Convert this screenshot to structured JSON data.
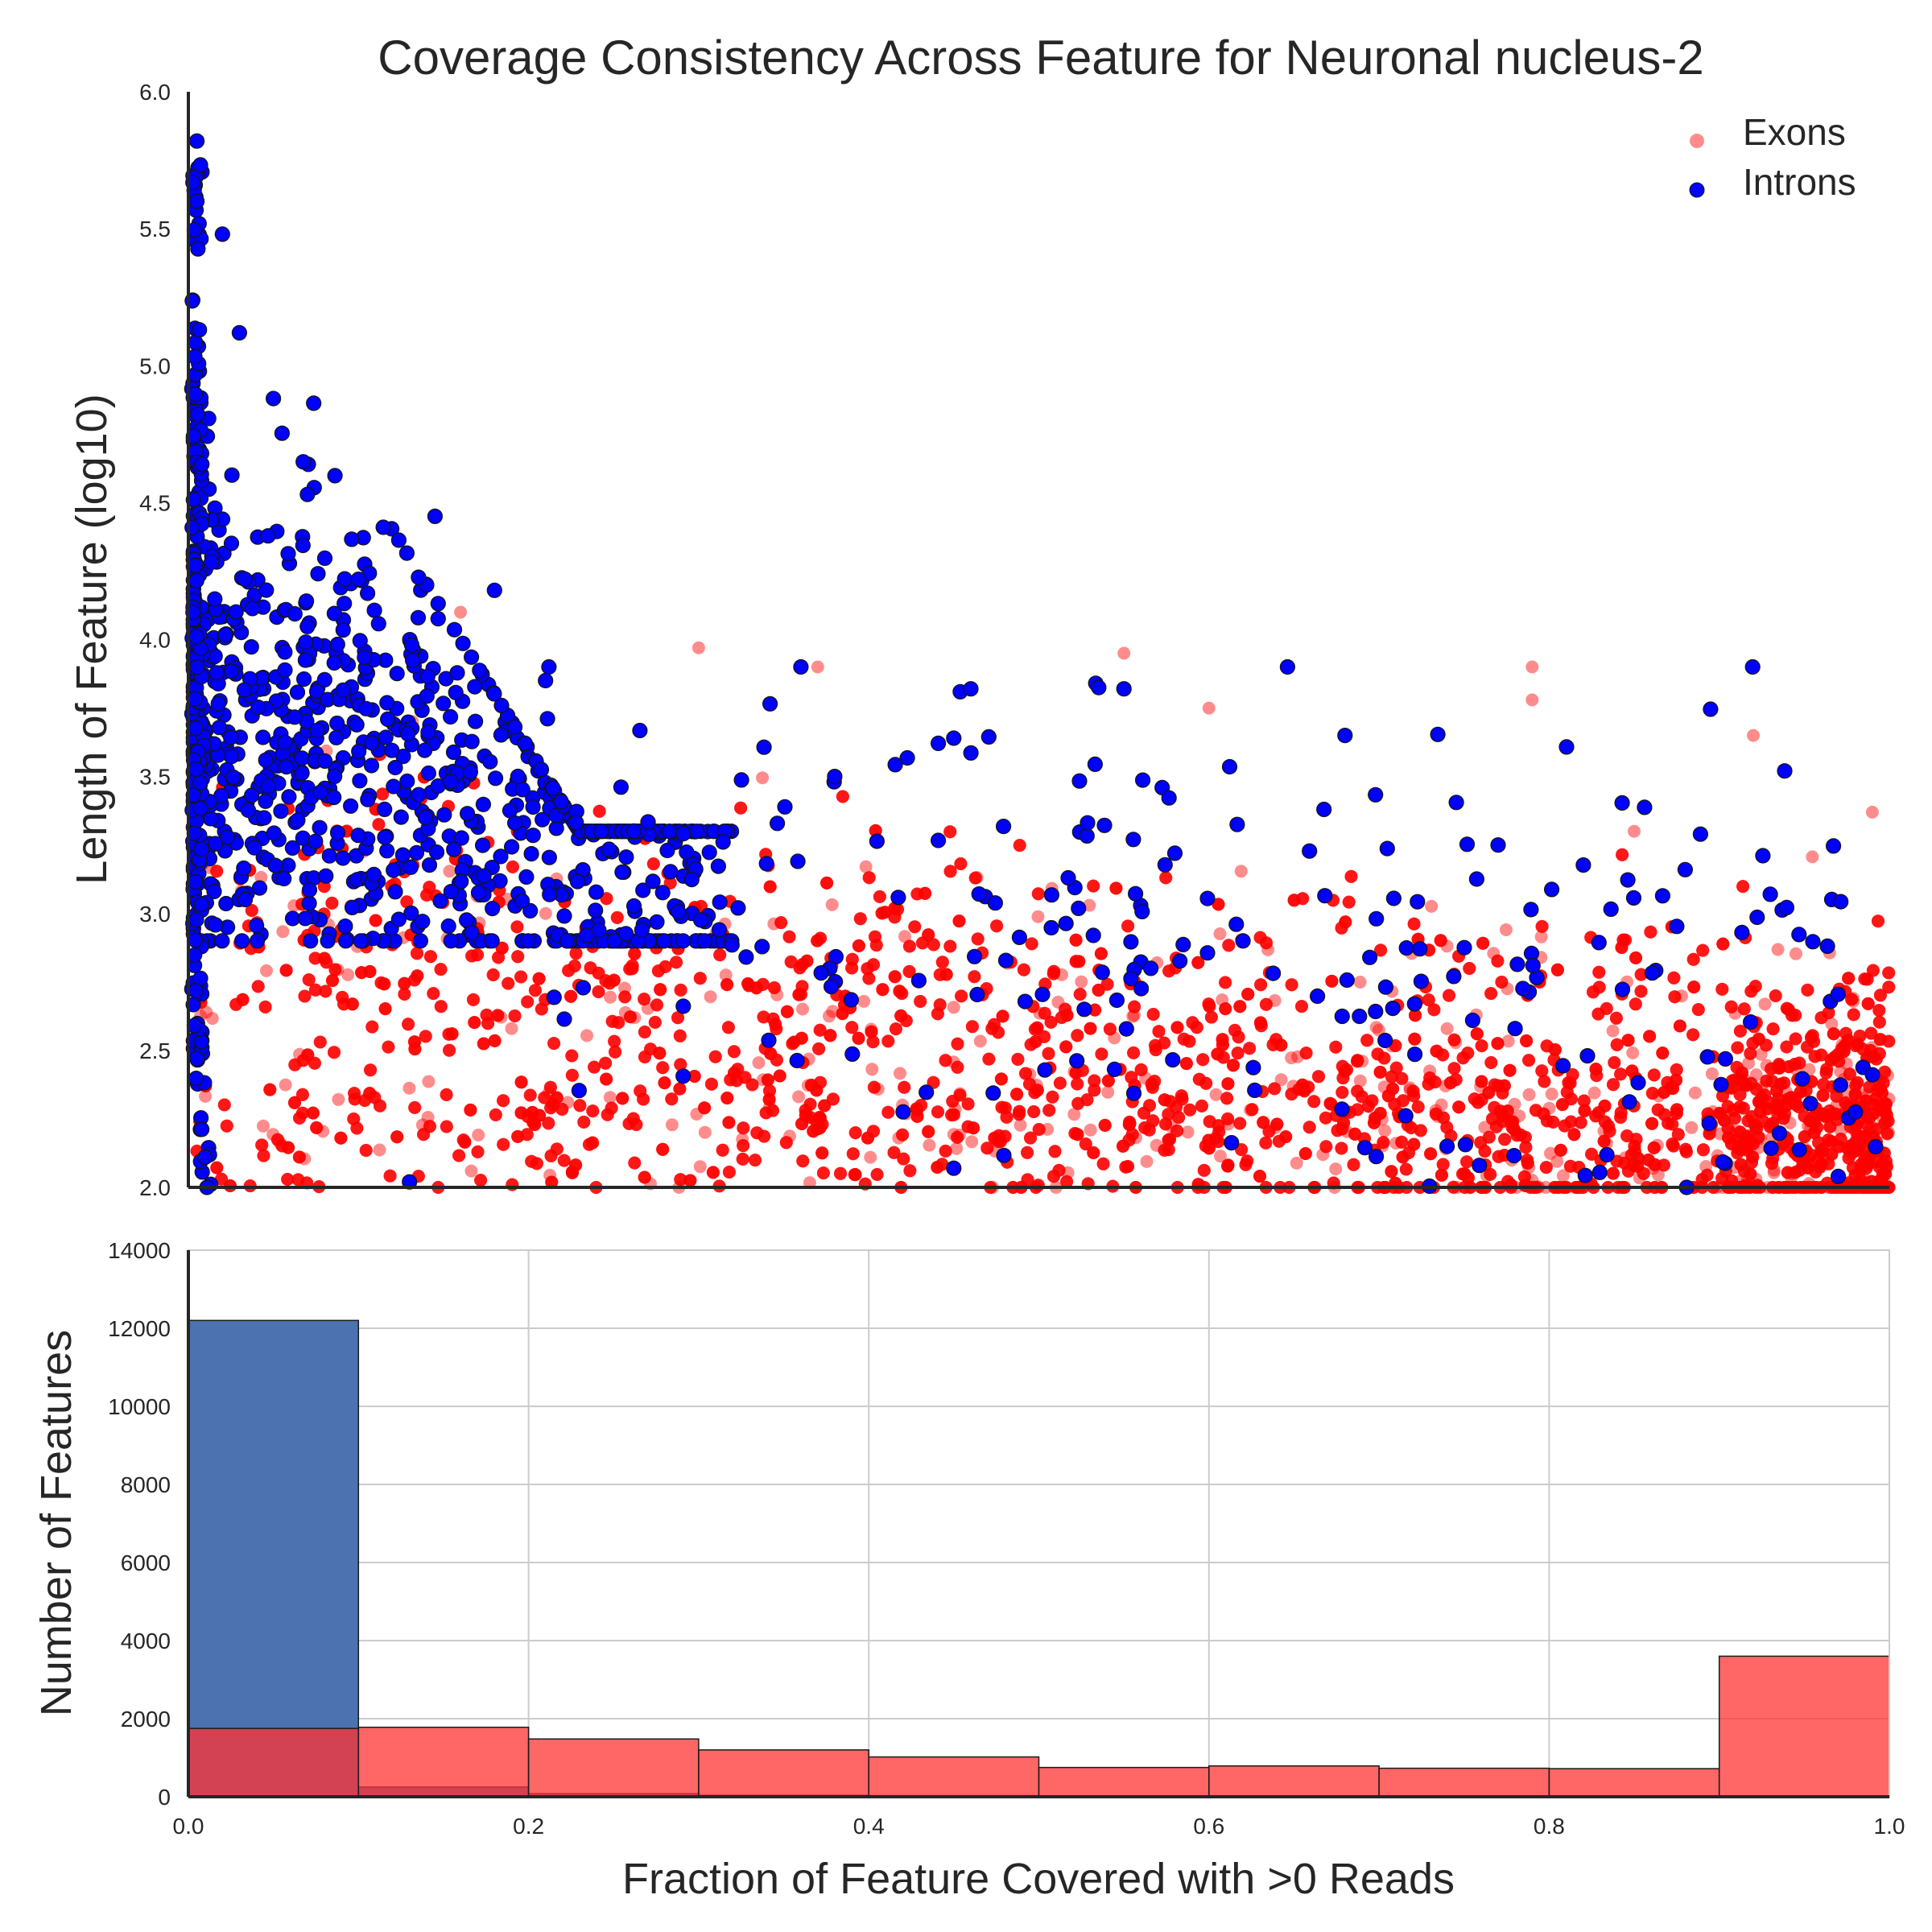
{
  "chart_data": [
    {
      "type": "scatter",
      "title": "Coverage Consistency Across Feature for Neuronal nucleus-2",
      "xlabel": "",
      "ylabel": "Length of Feature (log10)",
      "xlim": [
        0.0,
        1.0
      ],
      "ylim": [
        2.0,
        6.0
      ],
      "yticks": [
        "2.0",
        "2.5",
        "3.0",
        "3.5",
        "4.0",
        "4.5",
        "5.0",
        "5.5",
        "6.0"
      ],
      "grid": false,
      "legend_position": "top-right",
      "series": [
        {
          "name": "Exons",
          "color": "#ff0000",
          "opacity": 0.45,
          "approx_point_count": 13000,
          "distribution_note": "dense cloud; y mostly 2.0–3.4; lengths decline as fraction covered rises; upper envelope ~4.0 at x≈0.2 falling to ~3.4 at x=1.0; heavy concentration near y≈2.0–2.4 for x>0.5 and a dense column at x=1.0"
        },
        {
          "name": "Introns",
          "color": "#0000ff",
          "opacity": 1.0,
          "approx_point_count": 1400,
          "distribution_note": "concentrated at x≈0–0.1 with y 3.0–5.8; sparse points extending to x=1.0 at y 2.0–3.8; thin column at x≈0 spanning y 2.0–5.8"
        }
      ],
      "sample_points": {
        "Introns": [
          [
            0.005,
            5.82
          ],
          [
            0.005,
            5.6
          ],
          [
            0.02,
            5.48
          ],
          [
            0.03,
            5.12
          ],
          [
            0.05,
            4.88
          ],
          [
            0.07,
            4.53
          ],
          [
            0.145,
            4.45
          ],
          [
            0.1,
            4.22
          ],
          [
            0.18,
            4.18
          ],
          [
            0.21,
            3.85
          ],
          [
            0.46,
            3.82
          ],
          [
            0.55,
            3.82
          ],
          [
            0.68,
            3.65
          ],
          [
            0.45,
            3.64
          ],
          [
            0.38,
            3.5
          ],
          [
            0.77,
            3.25
          ],
          [
            0.88,
            3.16
          ],
          [
            0.93,
            3.07
          ],
          [
            0.58,
            3.22
          ],
          [
            0.62,
            2.9
          ],
          [
            0.78,
            2.58
          ],
          [
            0.74,
            2.15
          ],
          [
            0.97,
            2.04
          ],
          [
            0.13,
            2.02
          ],
          [
            0.45,
            2.07
          ]
        ],
        "Exons": [
          [
            0.3,
            3.97
          ],
          [
            0.37,
            3.9
          ],
          [
            0.55,
            3.95
          ],
          [
            0.79,
            3.9
          ],
          [
            0.79,
            3.78
          ],
          [
            0.92,
            3.65
          ],
          [
            0.99,
            3.37
          ],
          [
            0.16,
            4.1
          ],
          [
            0.6,
            3.75
          ],
          [
            0.85,
            3.3
          ]
        ]
      }
    },
    {
      "type": "bar",
      "title": "",
      "xlabel": "Fraction of Feature Covered with >0 Reads",
      "ylabel": "Number of Features",
      "xlim": [
        0.0,
        1.0
      ],
      "ylim": [
        0,
        14000
      ],
      "xticks": [
        "0.0",
        "0.2",
        "0.4",
        "0.6",
        "0.8",
        "1.0"
      ],
      "yticks": [
        "0",
        "2000",
        "4000",
        "6000",
        "8000",
        "10000",
        "12000",
        "14000"
      ],
      "grid": true,
      "bin_edges": [
        0.0,
        0.1,
        0.2,
        0.3,
        0.4,
        0.5,
        0.6,
        0.7,
        0.8,
        0.9,
        1.0
      ],
      "series": [
        {
          "name": "Introns",
          "color": "#4c72b0",
          "values": [
            12200,
            250,
            80,
            40,
            30,
            20,
            15,
            15,
            10,
            20
          ]
        },
        {
          "name": "Exons",
          "color": "#ff3333",
          "opacity": 0.75,
          "values": [
            1750,
            1780,
            1480,
            1200,
            1020,
            750,
            790,
            730,
            720,
            3600
          ]
        }
      ]
    }
  ]
}
